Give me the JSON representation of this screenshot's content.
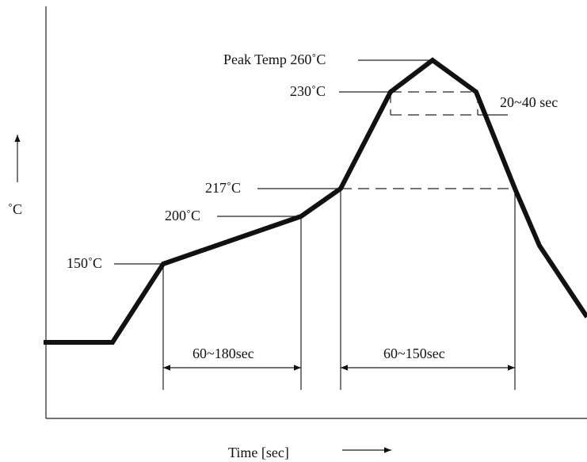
{
  "y_axis_label": "˚C",
  "x_axis_label": "Time [sec]",
  "temp_labels": {
    "peak": "Peak Temp 260˚C",
    "t230": "230˚C",
    "t217": "217˚C",
    "t200": "200˚C",
    "t150": "150˚C"
  },
  "durations": {
    "peak_window": "20~40 sec",
    "preheat": "60~180sec",
    "above_liquidus": "60~150sec"
  }
}
